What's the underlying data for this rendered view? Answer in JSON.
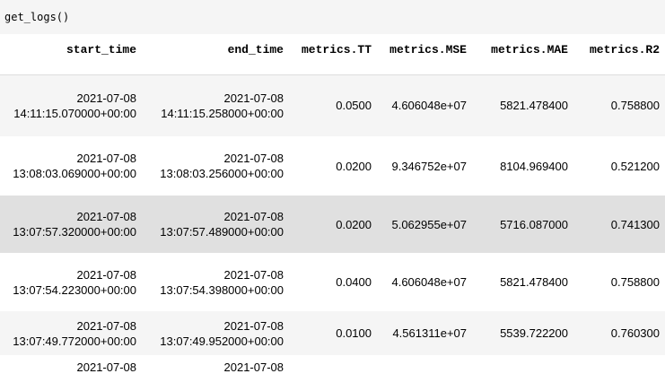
{
  "cell_input": "get_logs()",
  "columns": [
    "start_time",
    "end_time",
    "metrics.TT",
    "metrics.MSE",
    "metrics.MAE",
    "metrics.R2"
  ],
  "rows": [
    {
      "start_date": "2021-07-08",
      "start_time": "14:11:15.070000+00:00",
      "end_date": "2021-07-08",
      "end_time": "14:11:15.258000+00:00",
      "tt": "0.0500",
      "mse": "4.606048e+07",
      "mae": "5821.478400",
      "r2": "0.758800"
    },
    {
      "start_date": "2021-07-08",
      "start_time": "13:08:03.069000+00:00",
      "end_date": "2021-07-08",
      "end_time": "13:08:03.256000+00:00",
      "tt": "0.0200",
      "mse": "9.346752e+07",
      "mae": "8104.969400",
      "r2": "0.521200"
    },
    {
      "start_date": "2021-07-08",
      "start_time": "13:07:57.320000+00:00",
      "end_date": "2021-07-08",
      "end_time": "13:07:57.489000+00:00",
      "tt": "0.0200",
      "mse": "5.062955e+07",
      "mae": "5716.087000",
      "r2": "0.741300"
    },
    {
      "start_date": "2021-07-08",
      "start_time": "13:07:54.223000+00:00",
      "end_date": "2021-07-08",
      "end_time": "13:07:54.398000+00:00",
      "tt": "0.0400",
      "mse": "4.606048e+07",
      "mae": "5821.478400",
      "r2": "0.758800"
    },
    {
      "start_date": "2021-07-08",
      "start_time": "13:07:49.772000+00:00",
      "end_date": "2021-07-08",
      "end_time": "13:07:49.952000+00:00",
      "tt": "0.0100",
      "mse": "4.561311e+07",
      "mae": "5539.722200",
      "r2": "0.760300"
    },
    {
      "start_date": "2021-07-08",
      "end_date": "2021-07-08"
    }
  ]
}
